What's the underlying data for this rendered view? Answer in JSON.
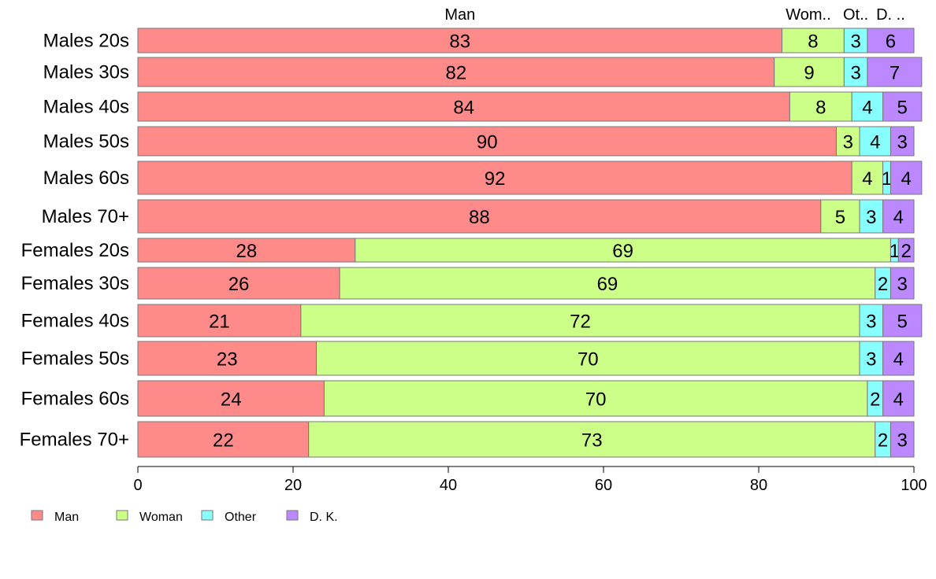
{
  "chart_data": {
    "type": "bar",
    "orientation": "horizontal",
    "stacked": true,
    "categories": [
      "Males 20s",
      "Males 30s",
      "Males 40s",
      "Males 50s",
      "Males 60s",
      "Males 70+",
      "Females 20s",
      "Females 30s",
      "Females 40s",
      "Females 50s",
      "Females 60s",
      "Females 70+"
    ],
    "series": [
      {
        "name": "Man",
        "color": "#FF8A8A",
        "values": [
          83,
          82,
          84,
          90,
          92,
          88,
          28,
          26,
          21,
          23,
          24,
          22
        ]
      },
      {
        "name": "Woman",
        "color": "#CCFF88",
        "values": [
          8,
          9,
          8,
          3,
          4,
          5,
          69,
          69,
          72,
          70,
          70,
          73
        ]
      },
      {
        "name": "Other",
        "color": "#88FFFF",
        "values": [
          3,
          3,
          4,
          4,
          1,
          3,
          1,
          2,
          3,
          3,
          2,
          2
        ]
      },
      {
        "name": "D. K.",
        "color": "#BB88FF",
        "values": [
          6,
          7,
          5,
          3,
          4,
          4,
          2,
          3,
          5,
          4,
          4,
          3
        ]
      }
    ],
    "top_labels": [
      "Man",
      "Wom..",
      "Ot..",
      "D. .."
    ],
    "xlim": [
      0,
      100
    ],
    "xticks": [
      0,
      20,
      40,
      60,
      80,
      100
    ],
    "grid": false,
    "legend_position": "bottom-left"
  }
}
